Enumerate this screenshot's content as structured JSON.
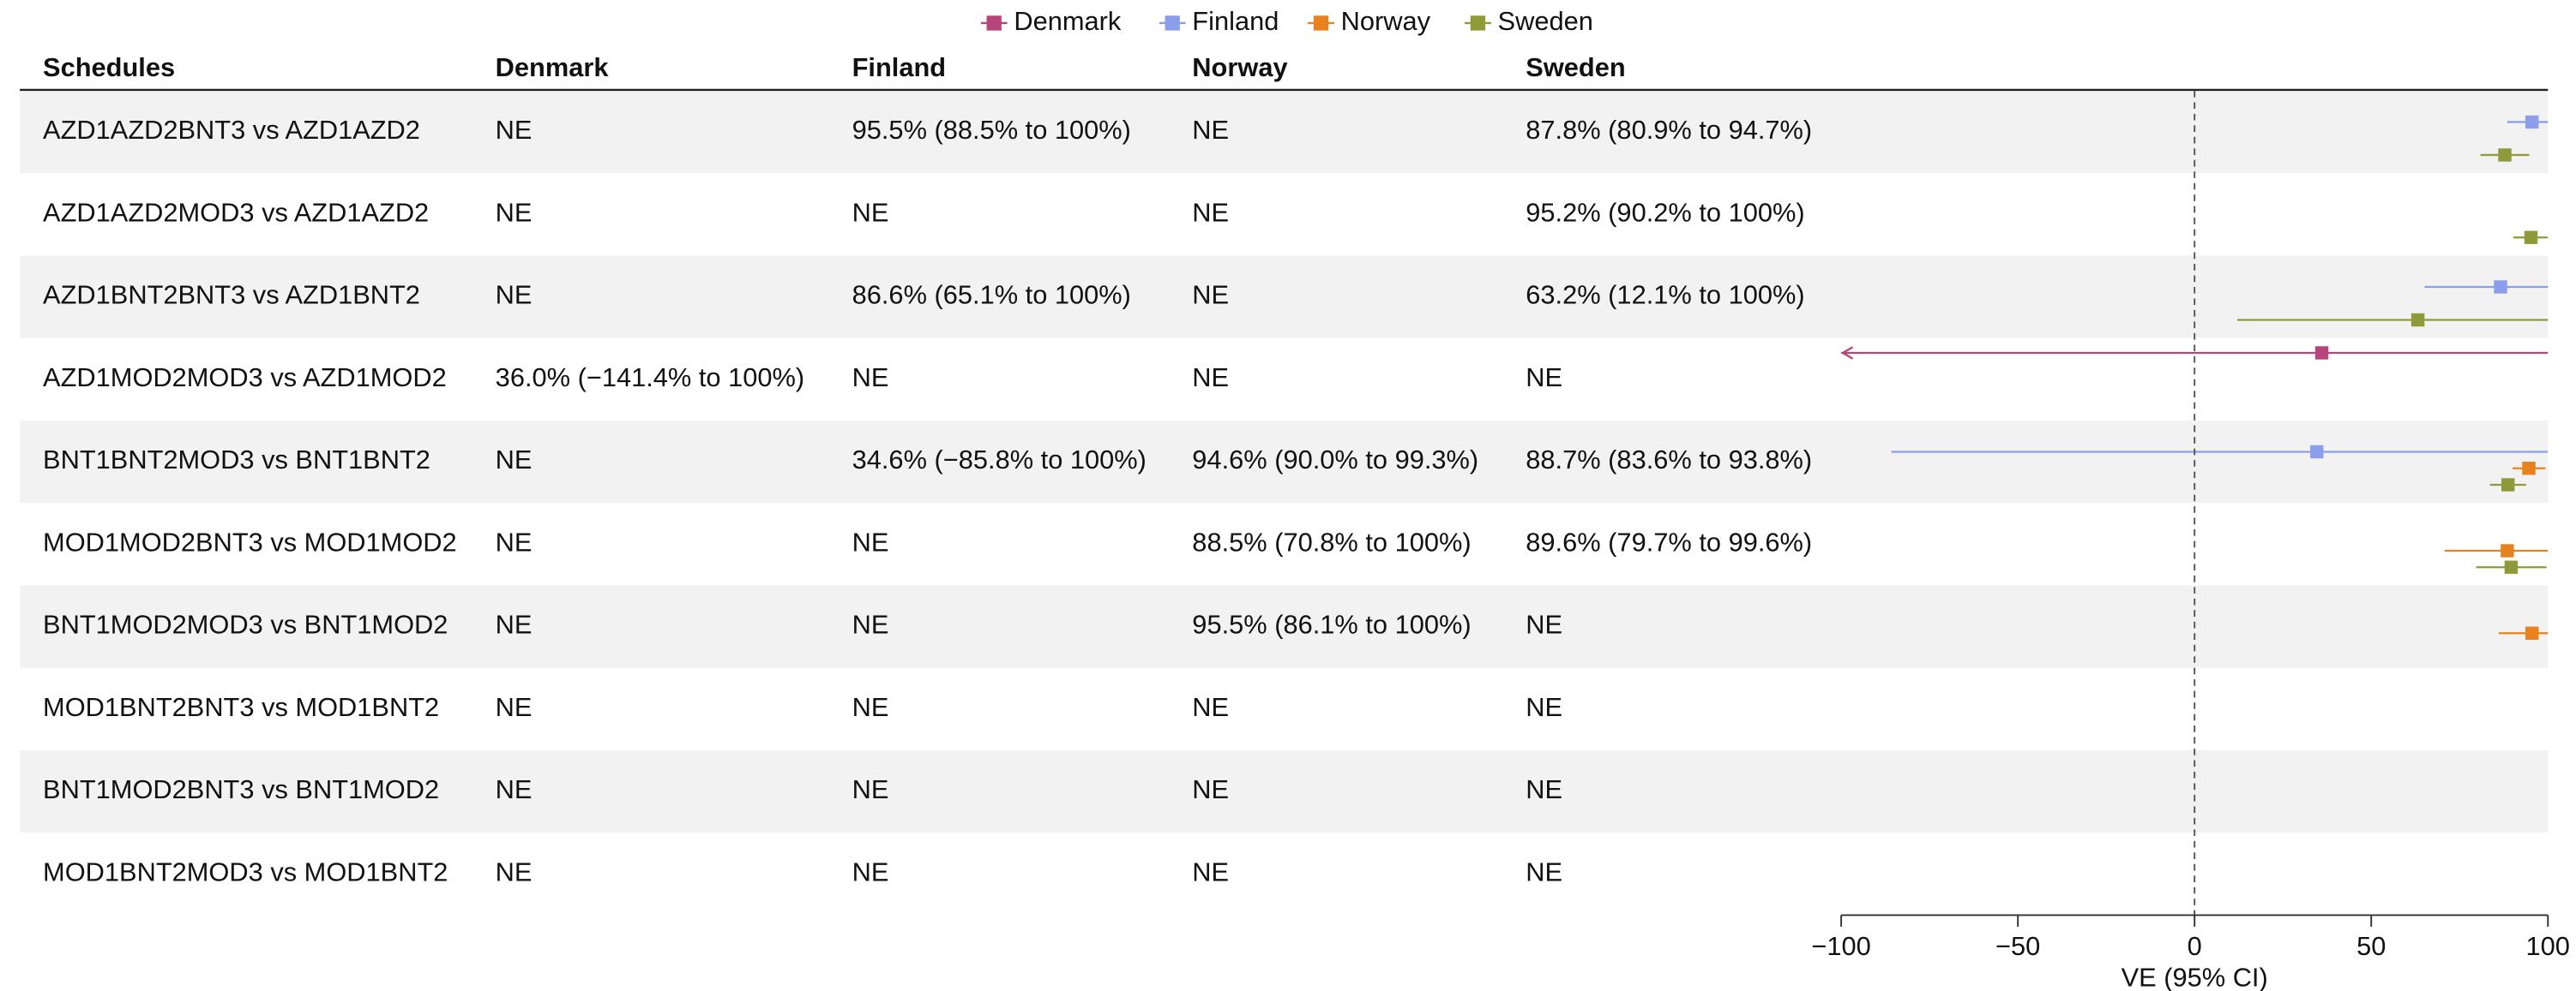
{
  "chart_data": {
    "type": "forest",
    "columns": [
      "Schedules",
      "Denmark",
      "Finland",
      "Norway",
      "Sweden"
    ],
    "rows": [
      [
        "AZD1AZD2BNT3 vs AZD1AZD2",
        "NE",
        "95.5% (88.5% to 100%)",
        "NE",
        "87.8% (80.9% to 94.7%)"
      ],
      [
        "AZD1AZD2MOD3 vs AZD1AZD2",
        "NE",
        "NE",
        "NE",
        "95.2% (90.2% to 100%)"
      ],
      [
        "AZD1BNT2BNT3 vs AZD1BNT2",
        "NE",
        "86.6% (65.1% to 100%)",
        "NE",
        "63.2% (12.1% to 100%)"
      ],
      [
        "AZD1MOD2MOD3 vs AZD1MOD2",
        "36.0% (−141.4% to 100%)",
        "NE",
        "NE",
        "NE"
      ],
      [
        "BNT1BNT2MOD3 vs BNT1BNT2",
        "NE",
        "34.6% (−85.8% to 100%)",
        "94.6% (90.0% to 99.3%)",
        "88.7% (83.6% to 93.8%)"
      ],
      [
        "MOD1MOD2BNT3 vs MOD1MOD2",
        "NE",
        "NE",
        "88.5% (70.8% to 100%)",
        "89.6% (79.7% to 99.6%)"
      ],
      [
        "BNT1MOD2MOD3 vs BNT1MOD2",
        "NE",
        "NE",
        "95.5% (86.1% to 100%)",
        "NE"
      ],
      [
        "MOD1BNT2BNT3 vs MOD1BNT2",
        "NE",
        "NE",
        "NE",
        "NE"
      ],
      [
        "BNT1MOD2BNT3 vs BNT1MOD2",
        "NE",
        "NE",
        "NE",
        "NE"
      ],
      [
        "MOD1BNT2MOD3 vs MOD1BNT2",
        "NE",
        "NE",
        "NE",
        "NE"
      ]
    ],
    "series": [
      {
        "name": "Denmark",
        "color": "#b5457a",
        "estimates": [
          null,
          null,
          null,
          36.0,
          null,
          null,
          null,
          null,
          null,
          null
        ],
        "lower": [
          null,
          null,
          null,
          -141.4,
          null,
          null,
          null,
          null,
          null,
          null
        ],
        "upper": [
          null,
          null,
          null,
          100,
          null,
          null,
          null,
          null,
          null,
          null
        ]
      },
      {
        "name": "Finland",
        "color": "#8c9eeb",
        "estimates": [
          95.5,
          null,
          86.6,
          null,
          34.6,
          null,
          null,
          null,
          null,
          null
        ],
        "lower": [
          88.5,
          null,
          65.1,
          null,
          -85.8,
          null,
          null,
          null,
          null,
          null
        ],
        "upper": [
          100,
          null,
          100,
          null,
          100,
          null,
          null,
          null,
          null,
          null
        ]
      },
      {
        "name": "Norway",
        "color": "#e8821e",
        "estimates": [
          null,
          null,
          null,
          null,
          94.6,
          88.5,
          95.5,
          null,
          null,
          null
        ],
        "lower": [
          null,
          null,
          null,
          null,
          90.0,
          70.8,
          86.1,
          null,
          null,
          null
        ],
        "upper": [
          null,
          null,
          null,
          null,
          99.3,
          100,
          100,
          null,
          null,
          null
        ]
      },
      {
        "name": "Sweden",
        "color": "#8f9a3a",
        "estimates": [
          87.8,
          95.2,
          63.2,
          null,
          88.7,
          89.6,
          null,
          null,
          null,
          null
        ],
        "lower": [
          80.9,
          90.2,
          12.1,
          null,
          83.6,
          79.7,
          null,
          null,
          null,
          null
        ],
        "upper": [
          94.7,
          100,
          100,
          null,
          93.8,
          99.6,
          null,
          null,
          null,
          null
        ]
      }
    ],
    "xlim": [
      -100,
      100
    ],
    "xticks": [
      {
        "value": -100,
        "label": "−100"
      },
      {
        "value": -50,
        "label": "−50"
      },
      0,
      50,
      100
    ],
    "xlabel": "VE (95% CI)"
  }
}
